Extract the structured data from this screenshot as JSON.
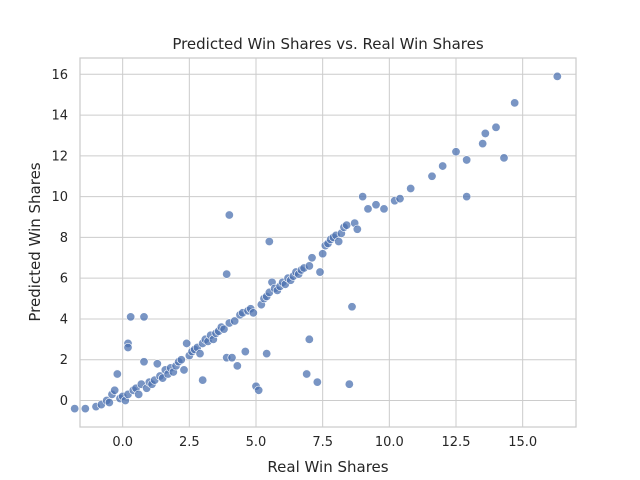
{
  "chart_data": {
    "type": "scatter",
    "title": "Predicted Win Shares vs. Real Win Shares",
    "xlabel": "Real Win Shares",
    "ylabel": "Predicted Win Shares",
    "xlim": [
      -1.6,
      17.0
    ],
    "ylim": [
      -1.3,
      16.8
    ],
    "xticks": [
      0.0,
      2.5,
      5.0,
      7.5,
      10.0,
      12.5,
      15.0
    ],
    "xtick_labels": [
      "0.0",
      "2.5",
      "5.0",
      "7.5",
      "10.0",
      "12.5",
      "15.0"
    ],
    "yticks": [
      0,
      2,
      4,
      6,
      8,
      10,
      12,
      14,
      16
    ],
    "ytick_labels": [
      "0",
      "2",
      "4",
      "6",
      "8",
      "10",
      "12",
      "14",
      "16"
    ],
    "grid": true,
    "point_color": "#4c72b0",
    "points": [
      [
        -1.8,
        -0.4
      ],
      [
        -1.4,
        -0.4
      ],
      [
        -1.0,
        -0.3
      ],
      [
        -0.8,
        -0.2
      ],
      [
        -0.6,
        0.0
      ],
      [
        -0.5,
        -0.1
      ],
      [
        -0.4,
        0.3
      ],
      [
        -0.3,
        0.5
      ],
      [
        -0.2,
        1.3
      ],
      [
        -0.1,
        0.1
      ],
      [
        0.0,
        0.2
      ],
      [
        0.1,
        0.0
      ],
      [
        0.2,
        0.3
      ],
      [
        0.2,
        2.8
      ],
      [
        0.2,
        2.6
      ],
      [
        0.3,
        4.1
      ],
      [
        0.4,
        0.5
      ],
      [
        0.5,
        0.6
      ],
      [
        0.6,
        0.3
      ],
      [
        0.7,
        0.8
      ],
      [
        0.8,
        4.1
      ],
      [
        0.8,
        1.9
      ],
      [
        0.9,
        0.6
      ],
      [
        1.0,
        0.9
      ],
      [
        1.1,
        0.8
      ],
      [
        1.2,
        1.0
      ],
      [
        1.3,
        1.8
      ],
      [
        1.4,
        1.2
      ],
      [
        1.5,
        1.1
      ],
      [
        1.6,
        1.5
      ],
      [
        1.7,
        1.3
      ],
      [
        1.8,
        1.6
      ],
      [
        1.9,
        1.4
      ],
      [
        2.0,
        1.7
      ],
      [
        2.1,
        1.9
      ],
      [
        2.2,
        2.0
      ],
      [
        2.3,
        1.5
      ],
      [
        2.4,
        2.8
      ],
      [
        2.5,
        2.2
      ],
      [
        2.6,
        2.4
      ],
      [
        2.7,
        2.5
      ],
      [
        2.8,
        2.6
      ],
      [
        2.9,
        2.3
      ],
      [
        3.0,
        1.0
      ],
      [
        3.0,
        2.8
      ],
      [
        3.1,
        3.0
      ],
      [
        3.2,
        2.9
      ],
      [
        3.3,
        3.2
      ],
      [
        3.4,
        3.0
      ],
      [
        3.5,
        3.3
      ],
      [
        3.6,
        3.4
      ],
      [
        3.7,
        3.6
      ],
      [
        3.8,
        3.5
      ],
      [
        3.9,
        6.2
      ],
      [
        3.9,
        2.1
      ],
      [
        4.0,
        3.8
      ],
      [
        4.0,
        9.1
      ],
      [
        4.1,
        2.1
      ],
      [
        4.2,
        3.9
      ],
      [
        4.3,
        1.7
      ],
      [
        4.4,
        4.2
      ],
      [
        4.5,
        4.3
      ],
      [
        4.6,
        2.4
      ],
      [
        4.7,
        4.4
      ],
      [
        4.8,
        4.5
      ],
      [
        4.9,
        4.3
      ],
      [
        5.0,
        0.7
      ],
      [
        5.1,
        0.5
      ],
      [
        5.2,
        4.7
      ],
      [
        5.3,
        5.0
      ],
      [
        5.4,
        5.1
      ],
      [
        5.4,
        2.3
      ],
      [
        5.5,
        5.3
      ],
      [
        5.5,
        7.8
      ],
      [
        5.6,
        5.8
      ],
      [
        5.7,
        5.5
      ],
      [
        5.8,
        5.4
      ],
      [
        5.9,
        5.6
      ],
      [
        6.0,
        5.8
      ],
      [
        6.1,
        5.7
      ],
      [
        6.2,
        6.0
      ],
      [
        6.3,
        5.9
      ],
      [
        6.4,
        6.1
      ],
      [
        6.5,
        6.3
      ],
      [
        6.6,
        6.2
      ],
      [
        6.7,
        6.4
      ],
      [
        6.8,
        6.5
      ],
      [
        6.9,
        1.3
      ],
      [
        7.0,
        3.0
      ],
      [
        7.0,
        6.6
      ],
      [
        7.1,
        7.0
      ],
      [
        7.3,
        0.9
      ],
      [
        7.4,
        6.3
      ],
      [
        7.5,
        7.2
      ],
      [
        7.6,
        7.6
      ],
      [
        7.7,
        7.7
      ],
      [
        7.8,
        7.9
      ],
      [
        7.9,
        8.0
      ],
      [
        8.0,
        8.1
      ],
      [
        8.1,
        7.8
      ],
      [
        8.2,
        8.2
      ],
      [
        8.3,
        8.5
      ],
      [
        8.4,
        8.6
      ],
      [
        8.5,
        0.8
      ],
      [
        8.6,
        4.6
      ],
      [
        8.7,
        8.7
      ],
      [
        8.8,
        8.4
      ],
      [
        9.0,
        10.0
      ],
      [
        9.2,
        9.4
      ],
      [
        9.5,
        9.6
      ],
      [
        9.8,
        9.4
      ],
      [
        10.2,
        9.8
      ],
      [
        10.4,
        9.9
      ],
      [
        10.8,
        10.4
      ],
      [
        11.6,
        11.0
      ],
      [
        12.0,
        11.5
      ],
      [
        12.5,
        12.2
      ],
      [
        12.9,
        11.8
      ],
      [
        12.9,
        10.0
      ],
      [
        13.5,
        12.6
      ],
      [
        13.6,
        13.1
      ],
      [
        14.0,
        13.4
      ],
      [
        14.3,
        11.9
      ],
      [
        14.7,
        14.6
      ],
      [
        16.3,
        15.9
      ]
    ]
  }
}
